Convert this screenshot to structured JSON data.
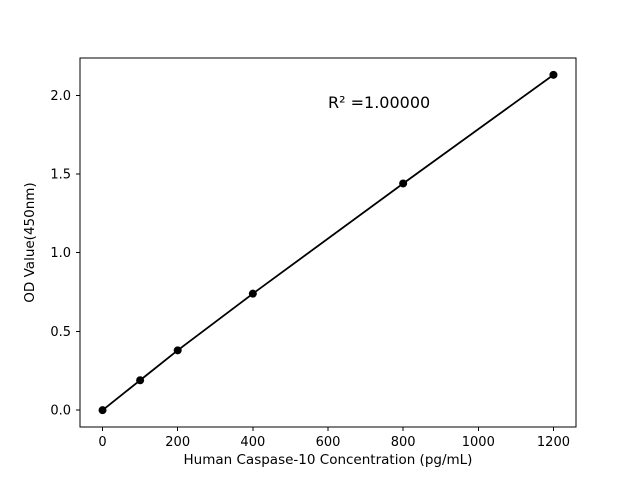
{
  "figure": {
    "background": "#ffffff"
  },
  "chart_data": {
    "type": "line",
    "x": [
      0,
      100,
      200,
      400,
      800,
      1200
    ],
    "y": [
      0.0,
      0.19,
      0.38,
      0.74,
      1.44,
      2.13
    ],
    "title": "",
    "xlabel": "Human Caspase-10 Concentration (pg/mL)",
    "ylabel": "OD Value(450nm)",
    "annotation": "R² =1.00000",
    "annotation_position": {
      "x": 600,
      "y": 1.95
    },
    "xlim": [
      -60,
      1260
    ],
    "ylim": [
      -0.107,
      2.237
    ],
    "xticks": [
      0,
      200,
      400,
      600,
      800,
      1000,
      1200
    ],
    "xtick_labels": [
      "0",
      "200",
      "400",
      "600",
      "800",
      "1000",
      "1200"
    ],
    "yticks": [
      0.0,
      0.5,
      1.0,
      1.5,
      2.0
    ],
    "ytick_labels": [
      "0.0",
      "0.5",
      "1.0",
      "1.5",
      "2.0"
    ],
    "line_color": "#000000",
    "marker_color": "#000000",
    "marker_radius": 4,
    "line_width": 1.8,
    "grid": false,
    "legend": null
  }
}
